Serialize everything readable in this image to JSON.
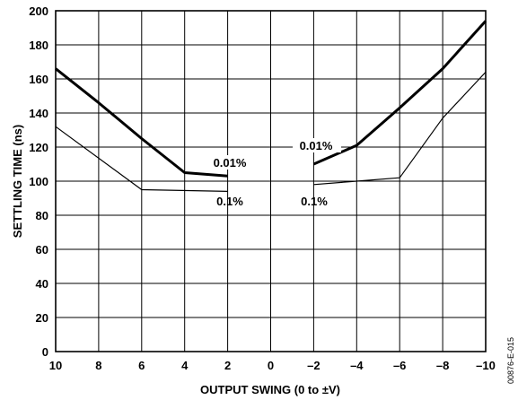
{
  "chart_data": {
    "type": "line",
    "title": "",
    "xlabel": "OUTPUT SWING (0 to ±V)",
    "ylabel": "SETTLING TIME (ns)",
    "xlim": [
      10,
      -10
    ],
    "ylim": [
      0,
      200
    ],
    "x_ticks": [
      10,
      8,
      6,
      4,
      2,
      0,
      -2,
      -4,
      -6,
      -8,
      -10
    ],
    "x_tick_labels": [
      "10",
      "8",
      "6",
      "4",
      "2",
      "0",
      "–2",
      "–4",
      "–6",
      "–8",
      "–10"
    ],
    "y_ticks": [
      0,
      20,
      40,
      60,
      80,
      100,
      120,
      140,
      160,
      180,
      200
    ],
    "y_tick_labels": [
      "0",
      "20",
      "40",
      "60",
      "80",
      "100",
      "120",
      "140",
      "160",
      "180",
      "200"
    ],
    "grid": true,
    "legend": "none",
    "series": [
      {
        "name": "0.01%",
        "weight": "heavy",
        "segments": [
          [
            [
              10,
              166
            ],
            [
              8,
              146
            ],
            [
              6,
              125
            ],
            [
              4,
              105
            ],
            [
              2,
              103
            ]
          ],
          [
            [
              -2,
              110
            ],
            [
              -4,
              121
            ],
            [
              -6,
              143
            ],
            [
              -8,
              166
            ],
            [
              -10,
              194
            ]
          ]
        ]
      },
      {
        "name": "0.1%",
        "weight": "light",
        "segments": [
          [
            [
              10,
              132
            ],
            [
              6,
              95
            ],
            [
              2,
              94
            ]
          ],
          [
            [
              -2,
              98
            ],
            [
              -4,
              100
            ],
            [
              -6,
              102
            ],
            [
              -8,
              137
            ],
            [
              -10,
              164
            ]
          ]
        ]
      }
    ],
    "annotations": [
      "0.01%",
      "0.1%",
      "0.01%",
      "0.1%"
    ],
    "colors": {
      "line": "#000000",
      "grid": "#000000",
      "background": "#ffffff"
    }
  },
  "figure_id": "00876-E-015"
}
